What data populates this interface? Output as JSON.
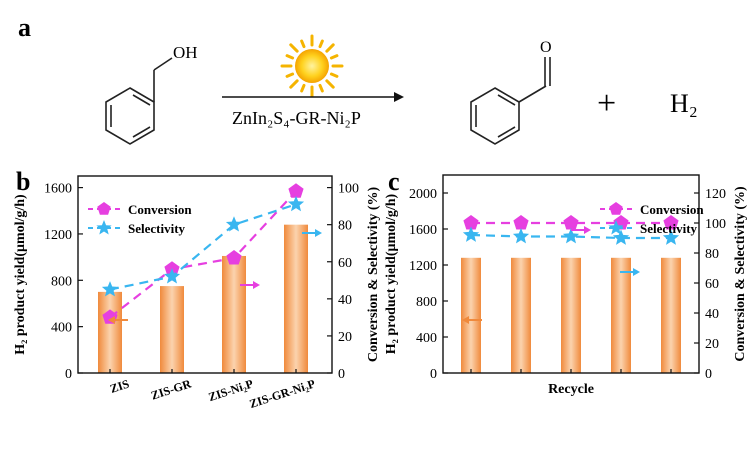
{
  "reaction": {
    "panel_label": "a",
    "catalyst": "ZnIn₂S₄-GR-Ni₂P",
    "reactant_group": "OH",
    "product_group": "O",
    "plus": "+",
    "coproduct": "H₂"
  },
  "chart_data": [
    {
      "panel_label": "b",
      "type": "bar",
      "categories": [
        "ZIS",
        "ZIS-GR",
        "ZIS-Ni₂P",
        "ZIS-GR-Ni₂P"
      ],
      "bar_series": {
        "name": "H₂ product yield",
        "values": [
          700,
          750,
          1010,
          1280
        ],
        "color": "#f5a86a"
      },
      "line_series": [
        {
          "name": "Conversion",
          "values": [
            30,
            56,
            62,
            98
          ],
          "color": "#e63fe0",
          "marker": "pentagon"
        },
        {
          "name": "Selectivity",
          "values": [
            45,
            52,
            80,
            91
          ],
          "color": "#39b6f0",
          "marker": "star"
        }
      ],
      "ylabel": "H₂ product yield(μmol/g/h)",
      "y2label": "Conversion & Selectivity (%)",
      "ylim": [
        0,
        1700
      ],
      "y2lim": [
        0,
        106.25
      ],
      "yticks": [
        0,
        400,
        800,
        1200,
        1600
      ],
      "y2ticks": [
        0,
        20,
        40,
        60,
        80,
        100
      ],
      "legend": "top-left",
      "grid": false
    },
    {
      "panel_label": "c",
      "type": "bar",
      "xlabel": "Recycle",
      "categories": [
        "",
        "",
        "",
        "",
        ""
      ],
      "bar_series": {
        "name": "H₂ product yield",
        "values": [
          1280,
          1280,
          1280,
          1280,
          1280
        ],
        "color": "#f5a86a"
      },
      "line_series": [
        {
          "name": "Conversion",
          "values": [
            100,
            100,
            100,
            100,
            100
          ],
          "color": "#e63fe0",
          "marker": "pentagon"
        },
        {
          "name": "Selectivity",
          "values": [
            92,
            91,
            91,
            90,
            90
          ],
          "color": "#39b6f0",
          "marker": "star"
        }
      ],
      "ylabel": "H₂ product yield(μmol/g/h)",
      "y2label": "Conversion & Selectivity (%)",
      "ylim": [
        0,
        2200
      ],
      "y2lim": [
        0,
        132
      ],
      "yticks": [
        0,
        400,
        800,
        1200,
        1600,
        2000
      ],
      "y2ticks": [
        0,
        20,
        40,
        60,
        80,
        100,
        120
      ],
      "legend": "top-right",
      "grid": false
    }
  ]
}
